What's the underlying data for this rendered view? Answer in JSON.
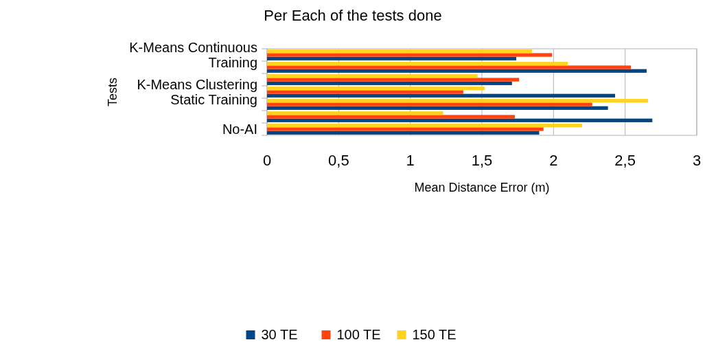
{
  "chart_data": {
    "type": "bar",
    "orientation": "horizontal",
    "title": "Per Each of the tests done",
    "xlabel": "Mean Distance Error (m)",
    "ylabel": "Tests",
    "categories": [
      "K-Means Continuous Training",
      null,
      null,
      "K-Means Clustering Static Training",
      null,
      null,
      "No-AI"
    ],
    "series": [
      {
        "name": "30 TE",
        "color": "#004586",
        "values": [
          1.74,
          2.65,
          1.71,
          2.43,
          2.38,
          2.69,
          1.9
        ]
      },
      {
        "name": "100 TE",
        "color": "#ff420e",
        "values": [
          1.99,
          2.54,
          1.76,
          1.37,
          2.27,
          1.73,
          1.93
        ]
      },
      {
        "name": "150 TE",
        "color": "#ffd320",
        "values": [
          1.85,
          2.1,
          1.47,
          1.52,
          2.66,
          1.23,
          2.2
        ]
      }
    ],
    "xlim": [
      0,
      3
    ],
    "xticks": [
      0,
      {
        "value": 0.5,
        "label": "0,5"
      },
      1,
      {
        "value": 1.5,
        "label": "1,5"
      },
      2,
      {
        "value": 2.5,
        "label": "2,5"
      },
      3
    ],
    "grid": "x",
    "legend": "bottom"
  }
}
